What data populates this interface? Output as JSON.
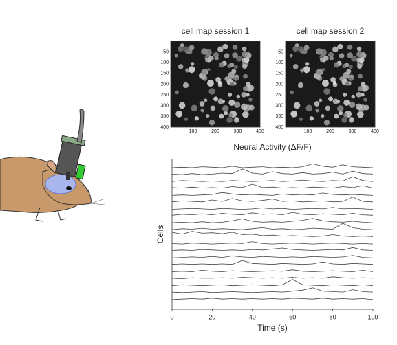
{
  "chart_data": [
    {
      "type": "image",
      "title": "cell map session 1",
      "xlim": [
        0,
        400
      ],
      "ylim": [
        0,
        400
      ],
      "yreverse": true,
      "xticks": [
        100,
        200,
        300,
        400
      ],
      "yticks": [
        50,
        100,
        150,
        200,
        250,
        300,
        350,
        400
      ]
    },
    {
      "type": "image",
      "title": "cell map session 2",
      "xlim": [
        0,
        400
      ],
      "ylim": [
        0,
        400
      ],
      "yreverse": true,
      "xticks": [
        100,
        200,
        300,
        400
      ],
      "yticks": [
        50,
        100,
        150,
        200,
        250,
        300,
        350,
        400
      ]
    },
    {
      "type": "line",
      "title": "Neural Activity (ΔF/F)",
      "x_label": "Time (s)",
      "y_label": "Cells",
      "color": "#444",
      "x": [
        0,
        5,
        10,
        15,
        20,
        25,
        30,
        35,
        40,
        45,
        50,
        55,
        60,
        65,
        70,
        75,
        80,
        85,
        90,
        95,
        100
      ],
      "xlim": [
        0,
        100
      ],
      "xticks": [
        0,
        20,
        40,
        60,
        80,
        100
      ],
      "series": [
        {
          "values": [
            0,
            0.1,
            0,
            0.2,
            0.1,
            0,
            0.3,
            0,
            0.1,
            0.2,
            0,
            0.1,
            0,
            0.2,
            0.8,
            0.3,
            0.1,
            0.6,
            0.2,
            0.1,
            0
          ]
        },
        {
          "values": [
            0.1,
            0,
            0.2,
            0,
            0.1,
            0.3,
            0.2,
            1.2,
            0.3,
            0.1,
            0.6,
            0.2,
            0.1,
            0.4,
            0.1,
            0.2,
            0.5,
            0.1,
            0.7,
            0.2,
            0.1
          ]
        },
        {
          "values": [
            0,
            0.2,
            0.1,
            0,
            0.1,
            0,
            0.2,
            0.1,
            0,
            0.1,
            0.2,
            0,
            0.1,
            0.3,
            0.1,
            0,
            0.2,
            0.1,
            1.0,
            0.2,
            0
          ]
        },
        {
          "values": [
            0.2,
            0.1,
            0.3,
            0.1,
            0.2,
            0.1,
            0.4,
            0.2,
            0.9,
            0.2,
            0.3,
            0.1,
            0.2,
            0.1,
            0.3,
            0.2,
            0.1,
            0.4,
            0.2,
            0.6,
            0.1
          ]
        },
        {
          "values": [
            0,
            0.1,
            0,
            0.1,
            0.2,
            0.6,
            0.3,
            0.1,
            0.2,
            0.1,
            0,
            0.3,
            0.1,
            0.2,
            0.1,
            0.5,
            0.2,
            0.1,
            0.2,
            0.1,
            0
          ]
        },
        {
          "values": [
            0.1,
            0.3,
            0.2,
            0.1,
            0.5,
            0.2,
            0.8,
            0.3,
            0.2,
            0.4,
            0.7,
            0.2,
            0.3,
            0.1,
            0.2,
            0.3,
            0.1,
            0.2,
            1.1,
            0.2,
            0.1
          ]
        },
        {
          "values": [
            0,
            0.1,
            0.2,
            0.1,
            0,
            0.2,
            0.1,
            0,
            0.1,
            0.3,
            0.1,
            0.2,
            0,
            0.1,
            0.2,
            0.1,
            0.4,
            0.1,
            0.2,
            0.1,
            0
          ]
        },
        {
          "values": [
            0.2,
            0.4,
            0.3,
            0.5,
            0.3,
            0.6,
            0.4,
            0.3,
            0.7,
            0.4,
            0.5,
            0.3,
            0.8,
            0.4,
            0.3,
            0.5,
            0.4,
            0.3,
            0.6,
            0.3,
            0.2
          ]
        },
        {
          "values": [
            0.1,
            0.2,
            0.1,
            0.3,
            0.1,
            0.2,
            0.5,
            0.9,
            0.4,
            0.2,
            0.3,
            0.2,
            0.4,
            0.6,
            1.0,
            0.5,
            0.3,
            0.2,
            0.4,
            0.2,
            0.1
          ]
        },
        {
          "values": [
            0.1,
            0.3,
            0.2,
            0.4,
            0.2,
            0.3,
            0.2,
            0.1,
            0.3,
            0.5,
            0.2,
            0.3,
            0.1,
            0.2,
            0.4,
            0.3,
            0.2,
            1.4,
            0.5,
            0.2,
            0.1
          ]
        },
        {
          "values": [
            1.0,
            0.6,
            1.2,
            0.8,
            0.9,
            0.7,
            1.0,
            0.5,
            0.6,
            0.3,
            0.4,
            0.2,
            0.3,
            0.2,
            0.1,
            0.2,
            0.5,
            0.2,
            0.1,
            0.2,
            0.1
          ]
        },
        {
          "values": [
            0.1,
            0,
            0.2,
            0.1,
            0,
            0.1,
            0.2,
            0.1,
            0.5,
            0.1,
            0,
            0.1,
            0.2,
            0.1,
            0,
            0.1,
            0.2,
            0.1,
            0,
            0.1,
            0
          ]
        },
        {
          "values": [
            0.1,
            0.2,
            0.1,
            0.3,
            0.2,
            0.1,
            0.2,
            0.1,
            0.3,
            0.2,
            0.4,
            0.6,
            0.3,
            0.2,
            0.1,
            0.2,
            0.3,
            0.2,
            0.7,
            0.2,
            0.1
          ]
        },
        {
          "values": [
            0,
            0.1,
            0.2,
            0.1,
            0.3,
            0.1,
            0.4,
            0.2,
            0.1,
            0.3,
            0.2,
            0.1,
            0.2,
            0.1,
            0.3,
            0.2,
            0.1,
            0.2,
            0.5,
            0.1,
            0
          ]
        },
        {
          "values": [
            0.1,
            0.2,
            0.1,
            0.2,
            0.1,
            0.2,
            0.1,
            0.9,
            0.3,
            0.2,
            0.1,
            0.3,
            0.2,
            0.1,
            0.2,
            0.6,
            0.2,
            0.1,
            0.3,
            0.2,
            0.1
          ]
        },
        {
          "values": [
            0,
            0.1,
            0,
            0.3,
            0.1,
            0,
            0.2,
            0.1,
            0,
            0.1,
            0.2,
            0.1,
            0.4,
            0.1,
            0,
            0.1,
            0.2,
            0.1,
            0,
            0.3,
            0
          ]
        },
        {
          "values": [
            0.1,
            0,
            0.2,
            0.1,
            0.1,
            0.2,
            0.1,
            0.3,
            0.2,
            0.1,
            0.2,
            0.1,
            0.3,
            0.1,
            0.2,
            0.1,
            0.4,
            0.2,
            0.1,
            0.2,
            0.1
          ]
        },
        {
          "values": [
            0,
            0.2,
            0.1,
            0,
            0.1,
            0.2,
            0,
            0.1,
            0.2,
            0.1,
            0,
            0.2,
            1.3,
            0.2,
            0.1,
            0,
            0.2,
            0.1,
            0,
            0.2,
            0
          ]
        },
        {
          "values": [
            0.1,
            0,
            0.1,
            0.2,
            0,
            0.1,
            0.2,
            0.1,
            0,
            0.1,
            0.2,
            0.1,
            0.3,
            0.5,
            1.0,
            0.3,
            0.2,
            0.1,
            0.6,
            0.2,
            0.1
          ]
        },
        {
          "values": [
            0,
            0.1,
            0.2,
            0.1,
            0.3,
            0.1,
            0.2,
            0.1,
            0.2,
            0.1,
            0.2,
            0.1,
            0.3,
            0.2,
            0.1,
            0.3,
            0.1,
            0.2,
            0.1,
            0.2,
            0
          ]
        }
      ]
    }
  ]
}
